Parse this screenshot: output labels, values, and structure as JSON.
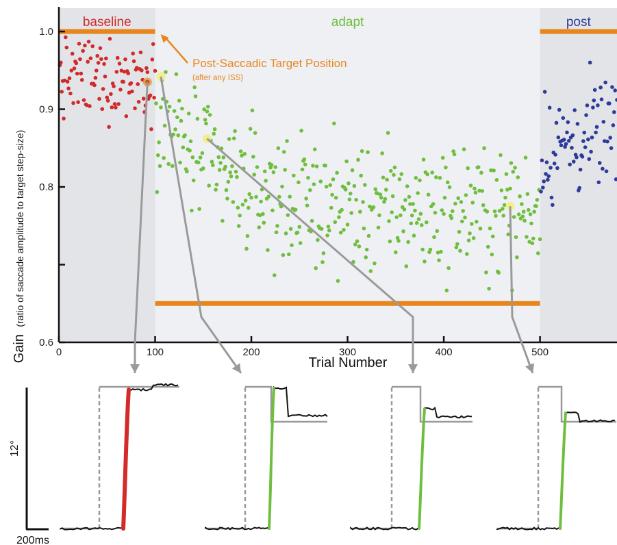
{
  "chart_data": {
    "type": "scatter",
    "ylabel_main": "Gain",
    "ylabel_detail": "(ratio of saccade amplitude to target step-size)",
    "xlabel": "Trial Number",
    "xlim": [
      0,
      580
    ],
    "ylim": [
      0.6,
      1.03
    ],
    "x_ticks": [
      0,
      100,
      200,
      300,
      400,
      500
    ],
    "x_tick_labels": [
      "0",
      "100",
      "200",
      "300",
      "400",
      "500"
    ],
    "y_ticks": [
      0.6,
      0.7,
      0.8,
      0.9,
      1.0
    ],
    "y_tick_labels": [
      "0.6",
      "",
      "0.8",
      "0.9",
      "1.0"
    ],
    "grid": false,
    "phases": [
      {
        "label": "baseline",
        "start": 0,
        "end": 100,
        "color": "#d02a2a",
        "shade": "#e3e4e7"
      },
      {
        "label": "adapt",
        "start": 100,
        "end": 500,
        "color": "#6fbe3e",
        "shade": "#eef0f3"
      },
      {
        "label": "post",
        "start": 500,
        "end": 580,
        "color": "#2d3a9a",
        "shade": "#e3e4e7"
      }
    ],
    "target_lines": [
      {
        "x": [
          0,
          100
        ],
        "y": 1.0
      },
      {
        "x": [
          100,
          500
        ],
        "y": 0.65
      },
      {
        "x": [
          500,
          580
        ],
        "y": 1.0
      }
    ],
    "target_color": "#e8861e",
    "annotation": {
      "text": "Post-Saccadic Target Position",
      "subtext": "(after any ISS)",
      "points_to": [
        100,
        1.0
      ]
    },
    "series": [
      {
        "phase": "baseline",
        "n": 100,
        "x_range": [
          1,
          100
        ],
        "mean_start": 0.94,
        "mean_end": 0.94,
        "spread": 0.025
      },
      {
        "phase": "adapt",
        "n": 400,
        "x_range": [
          101,
          500
        ],
        "mean_start": 0.91,
        "mean_end": 0.77,
        "tau": 60,
        "spread": 0.04
      },
      {
        "phase": "post",
        "n": 80,
        "x_range": [
          501,
          580
        ],
        "mean_start": 0.845,
        "mean_end": 0.875,
        "spread": 0.035
      }
    ],
    "highlighted_trials": [
      {
        "x": 92,
        "y": 0.935,
        "color": "#e0962a"
      },
      {
        "x": 106,
        "y": 0.942,
        "color": "#f2ee7a"
      },
      {
        "x": 154,
        "y": 0.862,
        "color": "#f2ee7a"
      },
      {
        "x": 469,
        "y": 0.775,
        "color": "#f2ee7a"
      }
    ],
    "traces": [
      {
        "saccade_color": "#d42a2a",
        "target_style": "single-step",
        "final_level": "high"
      },
      {
        "saccade_color": "#6fbe3e",
        "target_style": "step-back",
        "final_level": "high-then-correct"
      },
      {
        "saccade_color": "#6fbe3e",
        "target_style": "step-back",
        "final_level": "mid-then-correct"
      },
      {
        "saccade_color": "#6fbe3e",
        "target_style": "step-back",
        "final_level": "mid"
      }
    ],
    "scale_bar": {
      "vertical_label": "12°",
      "horizontal_label": "200ms"
    }
  }
}
